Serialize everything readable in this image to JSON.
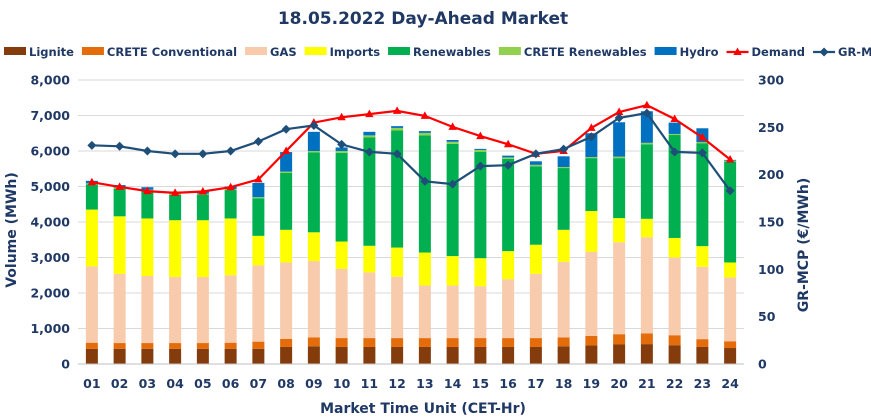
{
  "chart_data": {
    "type": "bar",
    "title": "18.05.2022  Day-Ahead Market",
    "xlabel": "Market Time Unit (CET-Hr)",
    "ylabel": "Volume (MWh)",
    "y2label": "GR-MCP (€/MWh)",
    "ylim": [
      0,
      8000
    ],
    "y2lim": [
      0,
      300
    ],
    "yticks": [
      0,
      1000,
      2000,
      3000,
      4000,
      5000,
      6000,
      7000,
      8000
    ],
    "yticklabels": [
      "0",
      "1,000",
      "2,000",
      "3,000",
      "4,000",
      "5,000",
      "6,000",
      "7,000",
      "8,000"
    ],
    "y2ticks": [
      0,
      50,
      100,
      150,
      200,
      250,
      300
    ],
    "y2ticklabels": [
      "0",
      "50",
      "100",
      "150",
      "200",
      "250",
      "300"
    ],
    "legend_position": "top",
    "categories": [
      "01",
      "02",
      "03",
      "04",
      "05",
      "06",
      "07",
      "08",
      "09",
      "10",
      "11",
      "12",
      "13",
      "14",
      "15",
      "16",
      "17",
      "18",
      "19",
      "20",
      "21",
      "22",
      "23",
      "24"
    ],
    "stacked_series": [
      {
        "name": "Lignite",
        "color": "#843c0c",
        "values": [
          430,
          430,
          430,
          430,
          430,
          430,
          430,
          480,
          500,
          480,
          480,
          480,
          480,
          480,
          480,
          480,
          480,
          500,
          520,
          550,
          560,
          530,
          480,
          450
        ]
      },
      {
        "name": "CRETE Conventional",
        "color": "#e46c0a",
        "values": [
          170,
          160,
          160,
          160,
          160,
          170,
          200,
          230,
          250,
          250,
          250,
          250,
          250,
          250,
          250,
          250,
          250,
          250,
          270,
          290,
          300,
          280,
          220,
          190
        ]
      },
      {
        "name": "GAS",
        "color": "#f8cbad",
        "values": [
          2150,
          1950,
          1890,
          1860,
          1860,
          1900,
          2150,
          2150,
          2150,
          1950,
          1850,
          1730,
          1480,
          1480,
          1460,
          1660,
          1810,
          2130,
          2370,
          2590,
          2710,
          2190,
          2040,
          1800
        ]
      },
      {
        "name": "Imports",
        "color": "#ffff00",
        "values": [
          1600,
          1620,
          1620,
          1600,
          1600,
          1600,
          830,
          920,
          810,
          770,
          750,
          820,
          930,
          830,
          790,
          790,
          820,
          900,
          1150,
          680,
          520,
          550,
          580,
          420
        ]
      },
      {
        "name": "Renewables",
        "color": "#00b050",
        "values": [
          710,
          780,
          780,
          720,
          720,
          800,
          1060,
          1600,
          2250,
          2500,
          3050,
          3300,
          3300,
          3160,
          3000,
          2600,
          2210,
          1740,
          1490,
          1690,
          2100,
          2900,
          2900,
          2840
        ]
      },
      {
        "name": "CRETE Renewables",
        "color": "#92d050",
        "values": [
          30,
          30,
          30,
          30,
          30,
          30,
          30,
          40,
          40,
          50,
          60,
          70,
          70,
          60,
          50,
          40,
          40,
          30,
          30,
          40,
          40,
          30,
          30,
          30
        ]
      },
      {
        "name": "Hydro",
        "color": "#0070c0",
        "values": [
          70,
          70,
          70,
          60,
          60,
          70,
          400,
          550,
          540,
          100,
          100,
          50,
          50,
          50,
          30,
          50,
          100,
          300,
          670,
          970,
          890,
          320,
          390,
          20
        ]
      }
    ],
    "line_series": [
      {
        "name": "Demand",
        "color": "#ff0000",
        "axis": "left",
        "marker": "triangle",
        "values": [
          5120,
          4990,
          4870,
          4820,
          4860,
          4980,
          5200,
          6000,
          6800,
          6950,
          7040,
          7130,
          6990,
          6680,
          6420,
          6190,
          5920,
          6000,
          6650,
          7100,
          7290,
          6900,
          6380,
          5760
        ]
      },
      {
        "name": "GR-MCP",
        "color": "#1f4e79",
        "axis": "right",
        "marker": "diamond",
        "values": [
          231,
          230,
          225,
          222,
          222,
          225,
          235,
          248,
          252,
          232,
          224,
          222,
          193,
          190,
          209,
          210,
          222,
          227,
          240,
          260,
          265,
          224,
          223,
          183
        ]
      }
    ],
    "legend": [
      "Lignite",
      "CRETE Conventional",
      "GAS",
      "Imports",
      "Renewables",
      "CRETE Renewables",
      "Hydro",
      "Demand",
      "GR-MCP"
    ]
  }
}
